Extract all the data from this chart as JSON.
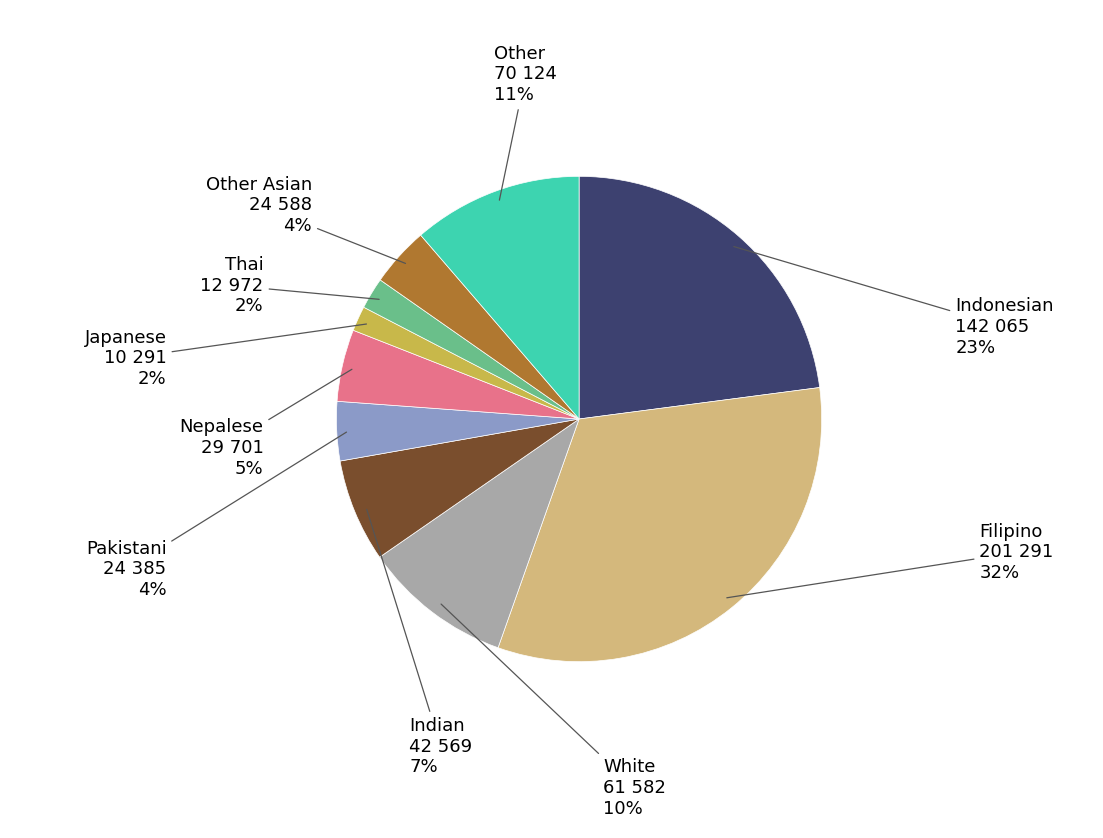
{
  "labels": [
    "Indonesian",
    "Filipino",
    "White",
    "Indian",
    "Pakistani",
    "Nepalese",
    "Japanese",
    "Thai",
    "Other Asian",
    "Other"
  ],
  "values": [
    142065,
    201291,
    61582,
    42569,
    24385,
    29701,
    10291,
    12972,
    24588,
    70124
  ],
  "percentages": [
    "23%",
    "32%",
    "10%",
    "7%",
    "4%",
    "5%",
    "2%",
    "2%",
    "4%",
    "11%"
  ],
  "display_values": [
    "142 065",
    "201 291",
    "61 582",
    "42 569",
    "24 385",
    "29 701",
    "10 291",
    "12 972",
    "24 588",
    "70 124"
  ],
  "colors": [
    "#3d4170",
    "#d4b87c",
    "#a8a8a8",
    "#7a4e2d",
    "#8b9ac8",
    "#e8728a",
    "#c8b84a",
    "#6abf8a",
    "#b07830",
    "#3dd4b0"
  ],
  "background_color": "#ffffff",
  "label_fontsize": 13,
  "startangle": 90,
  "manual_labels": [
    {
      "label": "Indonesian",
      "dv": "142 065",
      "pct": "23%",
      "xt": 1.55,
      "yt": 0.38,
      "ha": "left",
      "xi": 1.0,
      "yi": 0.15
    },
    {
      "label": "Filipino",
      "dv": "201 291",
      "pct": "32%",
      "xt": 1.65,
      "yt": -0.55,
      "ha": "left",
      "xi": 0.85,
      "yi": -0.65
    },
    {
      "label": "White",
      "dv": "61 582",
      "pct": "10%",
      "xt": 0.1,
      "yt": -1.52,
      "ha": "left",
      "xi": -0.12,
      "yi": -1.0
    },
    {
      "label": "Indian",
      "dv": "42 569",
      "pct": "7%",
      "xt": -0.7,
      "yt": -1.35,
      "ha": "left",
      "xi": -0.55,
      "yi": -0.92
    },
    {
      "label": "Pakistani",
      "dv": "24 385",
      "pct": "4%",
      "xt": -1.7,
      "yt": -0.62,
      "ha": "right",
      "xi": -0.9,
      "yi": -0.42
    },
    {
      "label": "Nepalese",
      "dv": "29 701",
      "pct": "5%",
      "xt": -1.3,
      "yt": -0.12,
      "ha": "right",
      "xi": -0.93,
      "yi": -0.14
    },
    {
      "label": "Japanese",
      "dv": "10 291",
      "pct": "2%",
      "xt": -1.7,
      "yt": 0.25,
      "ha": "right",
      "xi": -0.97,
      "yi": 0.05
    },
    {
      "label": "Thai",
      "dv": "12 972",
      "pct": "2%",
      "xt": -1.3,
      "yt": 0.55,
      "ha": "right",
      "xi": -0.88,
      "yi": 0.25
    },
    {
      "label": "Other Asian",
      "dv": "24 588",
      "pct": "4%",
      "xt": -1.1,
      "yt": 0.88,
      "ha": "right",
      "xi": -0.75,
      "yi": 0.55
    },
    {
      "label": "Other",
      "dv": "70 124",
      "pct": "11%",
      "xt": -0.35,
      "yt": 1.42,
      "ha": "left",
      "xi": -0.05,
      "yi": 1.02
    }
  ]
}
